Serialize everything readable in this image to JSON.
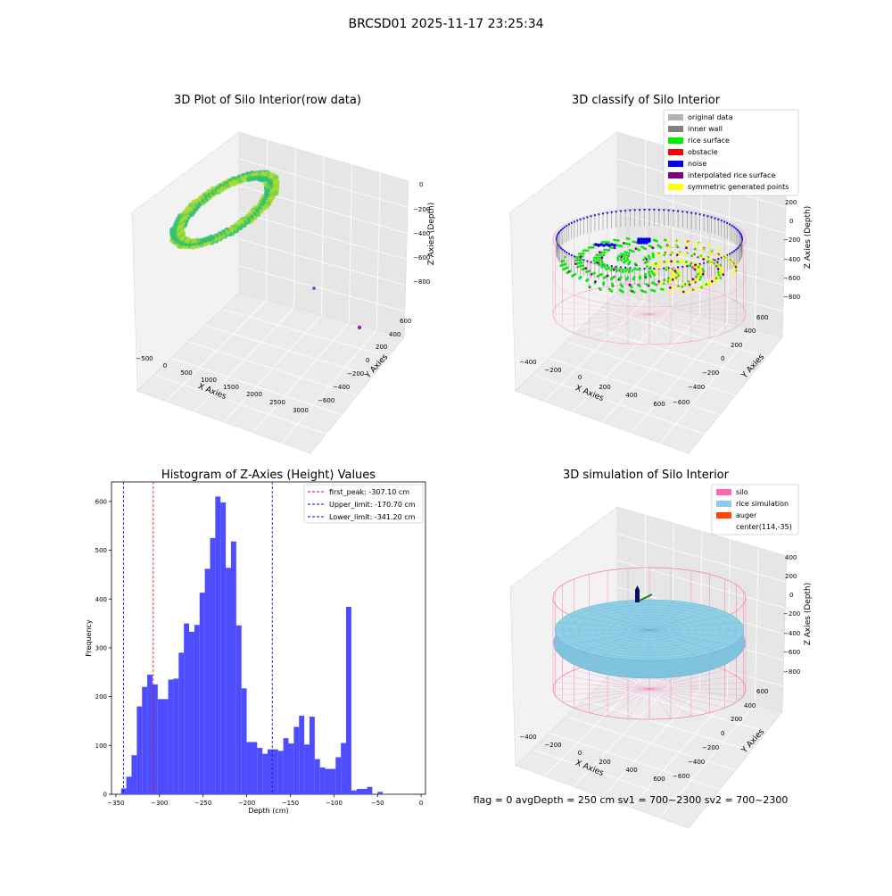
{
  "figure_title": "BRCSD01 2025-11-17 23:25:34",
  "status_text": "flag = 0     avgDepth = 250 cm  sv1 = 700~2300  sv2 = 700~2300",
  "panels": {
    "raw": {
      "title": "3D Plot of Silo Interior(row data)",
      "xlabel": "X Axies",
      "ylabel": "Y Axies",
      "zlabel": "Z Axies (Depth)",
      "xticks": [
        "−500",
        "0",
        "500",
        "1000",
        "1500",
        "2000",
        "2500",
        "3000"
      ],
      "yticks": [
        "600",
        "400",
        "200",
        "0",
        "−200",
        "−400",
        "−600"
      ],
      "zticks": [
        "0",
        "−200",
        "−400",
        "−600",
        "−800"
      ]
    },
    "classify": {
      "title": "3D classify of Silo Interior",
      "xlabel": "X Axies",
      "ylabel": "Y Axies",
      "zlabel": "Z Axies (Depth)",
      "xticks": [
        "−400",
        "−200",
        "0",
        "200",
        "400",
        "600"
      ],
      "yticks": [
        "600",
        "400",
        "200",
        "0",
        "−200",
        "−400",
        "−600"
      ],
      "zticks": [
        "200",
        "0",
        "−200",
        "−400",
        "−600",
        "−800"
      ],
      "legend": [
        {
          "label": "original data",
          "color": "#b3b3b3"
        },
        {
          "label": "inner wall",
          "color": "#808080"
        },
        {
          "label": "rice surface",
          "color": "#00ee00"
        },
        {
          "label": "obstacle",
          "color": "#ff0000"
        },
        {
          "label": "noise",
          "color": "#0000ee"
        },
        {
          "label": "interpolated rice surface",
          "color": "#800080"
        },
        {
          "label": "symmetric generated points",
          "color": "#ffff00"
        }
      ]
    },
    "simulation": {
      "title": "3D simulation of Silo Interior",
      "xlabel": "X Axies",
      "ylabel": "Y Axies",
      "zlabel": "Z Axies (Depth)",
      "xticks": [
        "−400",
        "−200",
        "0",
        "200",
        "400",
        "600"
      ],
      "yticks": [
        "600",
        "400",
        "200",
        "0",
        "−200",
        "−400",
        "−600"
      ],
      "zticks": [
        "400",
        "200",
        "0",
        "−200",
        "−400",
        "−600",
        "−800"
      ],
      "legend": [
        {
          "label": "silo",
          "color": "#ff69b4"
        },
        {
          "label": "rice simulation",
          "color": "#87ceeb"
        },
        {
          "label": "auger",
          "color": "#ff4500"
        },
        {
          "label": "center(114,-35)",
          "color": "#ffffff"
        }
      ]
    }
  },
  "chart_data": {
    "type": "bar",
    "title": "Histogram of Z-Axies (Height) Values",
    "xlabel": "Depth (cm)",
    "ylabel": "Frequency",
    "xlim": [
      -355,
      5
    ],
    "ylim": [
      0,
      640
    ],
    "xticks": [
      -350,
      -300,
      -250,
      -200,
      -150,
      -100,
      -50,
      0
    ],
    "xtick_labels": [
      "−350",
      "−300",
      "−250",
      "−200",
      "−150",
      "−100",
      "−50",
      "0"
    ],
    "yticks": [
      0,
      100,
      200,
      300,
      400,
      500,
      600
    ],
    "ytick_labels": [
      "0",
      "100",
      "200",
      "300",
      "400",
      "500",
      "600"
    ],
    "bar_color": "#4d4dff",
    "bins": [
      [
        -344,
        -338,
        12
      ],
      [
        -338,
        -332,
        36
      ],
      [
        -332,
        -326,
        80
      ],
      [
        -326,
        -320,
        180
      ],
      [
        -320,
        -314,
        220
      ],
      [
        -314,
        -308,
        245
      ],
      [
        -308,
        -302,
        225
      ],
      [
        -302,
        -290,
        195
      ],
      [
        -290,
        -284,
        235
      ],
      [
        -284,
        -278,
        237
      ],
      [
        -278,
        -272,
        290
      ],
      [
        -272,
        -266,
        350
      ],
      [
        -266,
        -260,
        333
      ],
      [
        -260,
        -254,
        347
      ],
      [
        -254,
        -248,
        413
      ],
      [
        -248,
        -242,
        462
      ],
      [
        -242,
        -236,
        525
      ],
      [
        -236,
        -230,
        610
      ],
      [
        -230,
        -224,
        598
      ],
      [
        -224,
        -218,
        464
      ],
      [
        -218,
        -212,
        518
      ],
      [
        -212,
        -206,
        346
      ],
      [
        -206,
        -200,
        217
      ],
      [
        -200,
        -188,
        107
      ],
      [
        -188,
        -182,
        95
      ],
      [
        -182,
        -176,
        83
      ],
      [
        -176,
        -170,
        92
      ],
      [
        -170,
        -164,
        92
      ],
      [
        -164,
        -158,
        89
      ],
      [
        -158,
        -152,
        115
      ],
      [
        -152,
        -146,
        104
      ],
      [
        -146,
        -140,
        138
      ],
      [
        -140,
        -134,
        161
      ],
      [
        -134,
        -128,
        102
      ],
      [
        -128,
        -122,
        159
      ],
      [
        -122,
        -116,
        72
      ],
      [
        -116,
        -110,
        55
      ],
      [
        -110,
        -98,
        52
      ],
      [
        -98,
        -92,
        76
      ],
      [
        -92,
        -86,
        105
      ],
      [
        -86,
        -80,
        384
      ],
      [
        -80,
        -74,
        8
      ],
      [
        -74,
        -62,
        11
      ],
      [
        -62,
        -56,
        15
      ],
      [
        -50,
        -44,
        5
      ]
    ],
    "vlines": [
      {
        "x": -307.1,
        "color": "#ff0000",
        "label": "first_peak: -307.10 cm"
      },
      {
        "x": -170.7,
        "color": "#0000cc",
        "label": "Upper_limit: -170.70 cm"
      },
      {
        "x": -341.2,
        "color": "#0000cc",
        "label": "Lower_limit: -341.20 cm"
      }
    ],
    "legend_position": "top-right"
  }
}
